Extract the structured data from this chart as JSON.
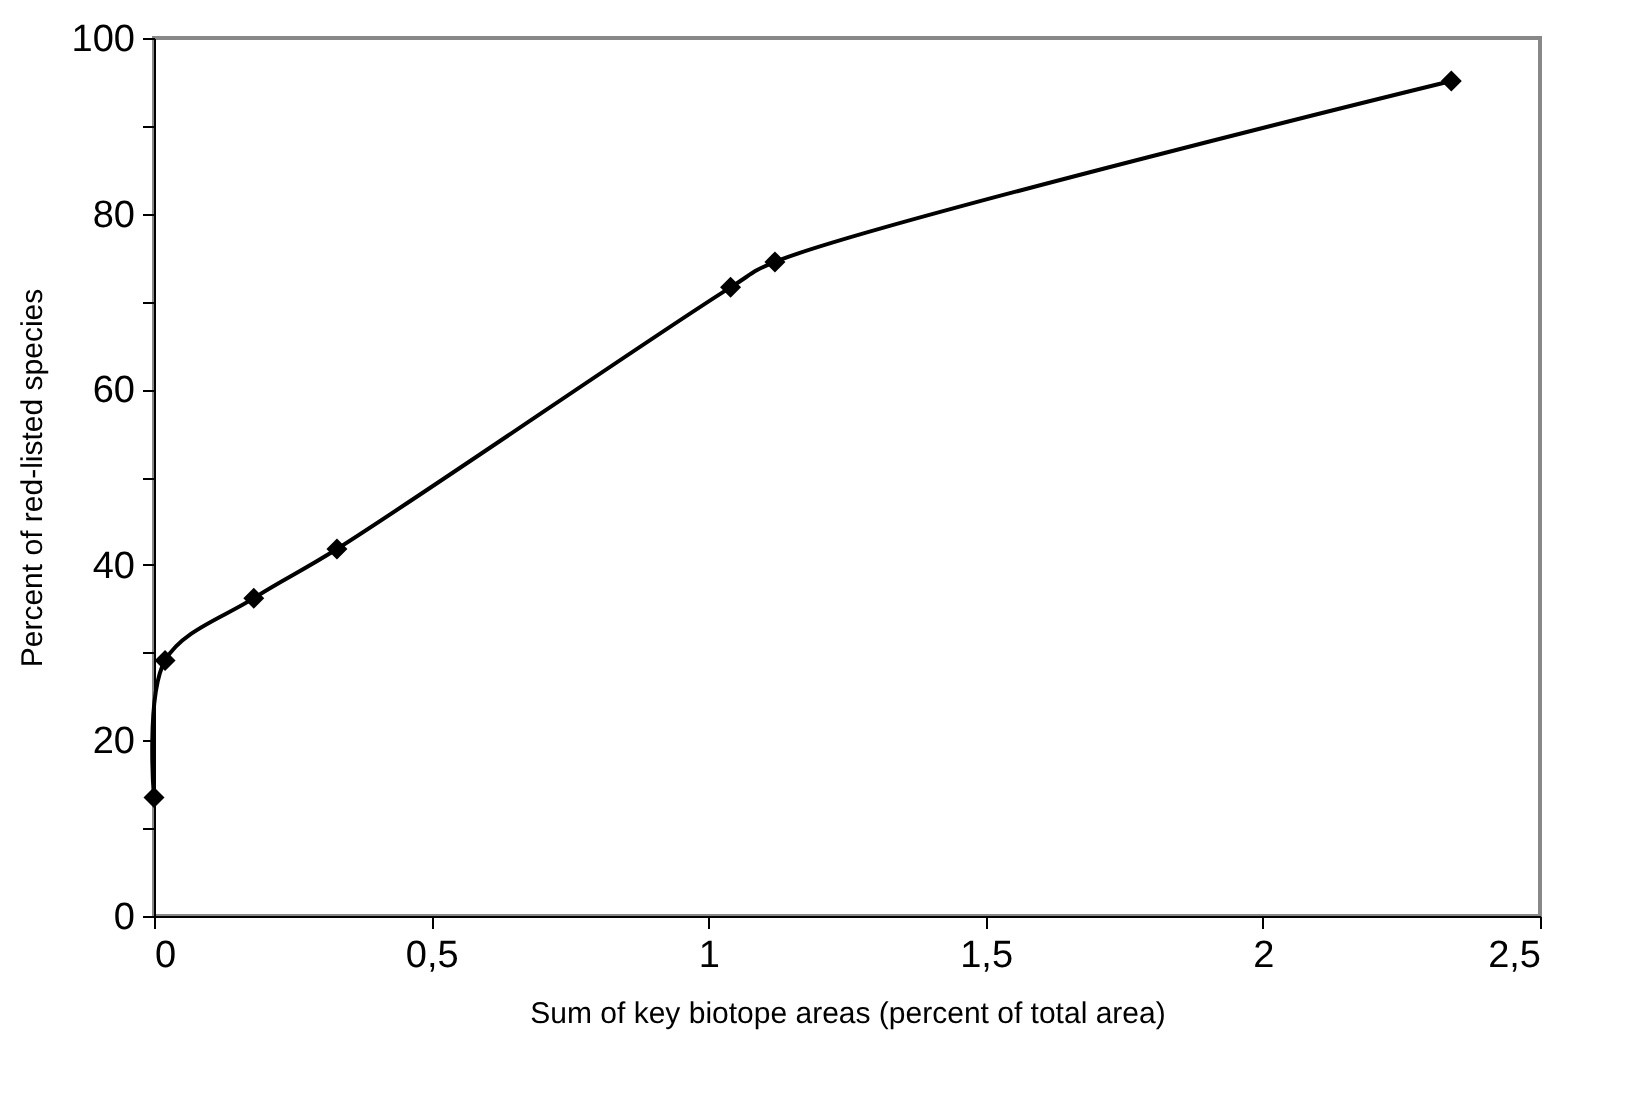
{
  "chart_data": {
    "type": "line",
    "xlabel": "Sum of key biotope areas (percent of total area)",
    "ylabel": "Percent of red-listed species",
    "x": [
      0,
      0.02,
      0.18,
      0.33,
      1.04,
      1.12,
      2.34
    ],
    "series": [
      {
        "color": "#000000",
        "values": [
          13.5,
          29.1,
          36.2,
          41.8,
          71.6,
          74.5,
          95.1
        ]
      }
    ],
    "xlim": [
      0,
      2.5
    ],
    "xticks": [
      {
        "value": 0,
        "label": "0"
      },
      {
        "value": 0.5,
        "label": "0,5"
      },
      {
        "value": 1,
        "label": "1"
      },
      {
        "value": 1.5,
        "label": "1,5"
      },
      {
        "value": 2,
        "label": "2"
      },
      {
        "value": 2.5,
        "label": "2,5"
      }
    ],
    "ylim": [
      0,
      100
    ],
    "yticks": [
      0,
      {
        "value": 10,
        "label": null
      },
      20,
      {
        "value": 30,
        "label": null
      },
      40,
      {
        "value": 50,
        "label": null
      },
      60,
      {
        "value": 70,
        "label": null
      },
      80,
      {
        "value": 90,
        "label": null
      },
      100
    ],
    "grid": false,
    "marker": "diamond",
    "line_style": "solid"
  }
}
